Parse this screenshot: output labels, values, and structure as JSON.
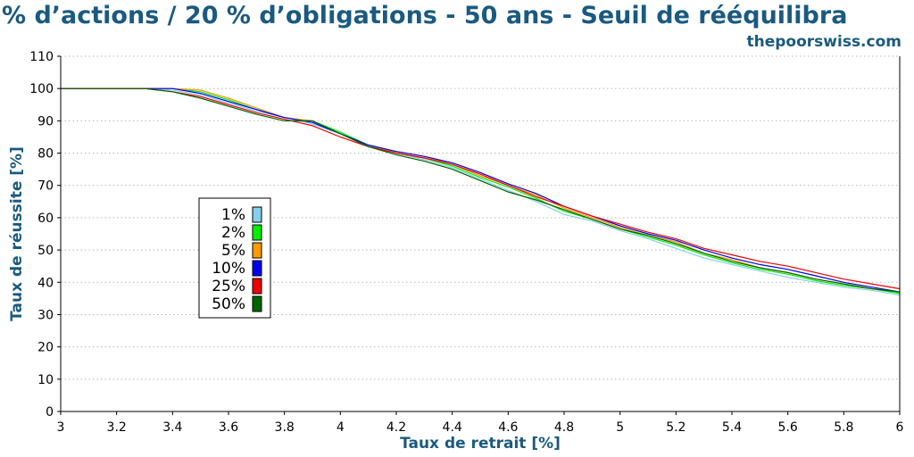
{
  "chart_data": {
    "type": "line",
    "title": "% d’actions / 20 % d’obligations - 50 ans - Seuil de rééquilibra",
    "source": "thepoorswiss.com",
    "xlabel": "Taux de retrait [%]",
    "ylabel": "Taux de réussite [%]",
    "xlim": [
      3,
      6
    ],
    "ylim": [
      0,
      110
    ],
    "x_ticks": [
      "3",
      "3.2",
      "3.4",
      "3.6",
      "3.8",
      "4",
      "4.2",
      "4.4",
      "4.6",
      "4.8",
      "5",
      "5.2",
      "5.4",
      "5.6",
      "5.8",
      "6"
    ],
    "y_ticks": [
      "0",
      "10",
      "20",
      "30",
      "40",
      "50",
      "60",
      "70",
      "80",
      "90",
      "100",
      "110"
    ],
    "grid": "horizontal-dotted",
    "legend_placement": "center-left",
    "x": [
      3.0,
      3.1,
      3.2,
      3.3,
      3.4,
      3.5,
      3.6,
      3.7,
      3.8,
      3.9,
      4.0,
      4.1,
      4.2,
      4.3,
      4.4,
      4.5,
      4.6,
      4.7,
      4.8,
      4.9,
      5.0,
      5.1,
      5.2,
      5.3,
      5.4,
      5.5,
      5.6,
      5.7,
      5.8,
      5.9,
      6.0
    ],
    "series": [
      {
        "name": "1%",
        "color": "#87ceeb",
        "values": [
          100,
          100,
          100,
          100,
          99.5,
          98,
          95.5,
          93,
          91,
          89,
          86,
          82.5,
          80,
          78,
          75.5,
          72,
          68.5,
          65,
          61,
          59,
          56,
          53.5,
          50.5,
          47.5,
          45.5,
          43.5,
          41.5,
          40,
          38.5,
          37.5,
          36
        ]
      },
      {
        "name": "2%",
        "color": "#00ee00",
        "values": [
          100,
          100,
          100,
          100,
          100,
          99,
          96.5,
          93.5,
          91,
          90,
          86.5,
          82.5,
          80,
          78.5,
          76,
          72.5,
          69.5,
          66,
          62,
          59.5,
          56.5,
          54,
          51.5,
          48.5,
          46,
          44,
          42.5,
          40.5,
          39,
          38,
          36.5
        ]
      },
      {
        "name": "5%",
        "color": "#ff9900",
        "values": [
          100,
          100,
          100,
          100,
          100,
          99.5,
          97,
          94,
          91,
          90,
          86,
          82,
          80.5,
          79,
          76.5,
          73,
          70,
          67,
          63,
          60,
          57,
          54.5,
          52.5,
          49,
          47,
          44.5,
          43,
          41,
          39.5,
          38,
          37
        ]
      },
      {
        "name": "10%",
        "color": "#0000ee",
        "values": [
          100,
          100,
          100,
          100,
          100,
          98.5,
          96,
          93.5,
          91,
          89.5,
          86,
          82.5,
          80.5,
          79,
          77,
          74,
          70.5,
          67.5,
          63.5,
          60.5,
          57.5,
          55,
          53,
          50,
          47.5,
          45.5,
          44,
          42,
          40,
          38.5,
          37
        ]
      },
      {
        "name": "25%",
        "color": "#ee0000",
        "values": [
          100,
          100,
          100,
          100,
          99,
          97.5,
          95,
          92.5,
          90.5,
          88.5,
          85,
          82,
          80,
          78.5,
          76.5,
          73.5,
          70,
          66.5,
          63.5,
          60.5,
          58,
          55.5,
          53.5,
          50.5,
          48.5,
          46.5,
          45,
          43,
          41,
          39.5,
          38
        ]
      },
      {
        "name": "50%",
        "color": "#006400",
        "values": [
          100,
          100,
          100,
          100,
          99,
          97,
          94.5,
          92,
          90,
          90,
          86,
          82,
          79.5,
          77.5,
          75,
          71.5,
          68,
          65.5,
          62.5,
          59.5,
          56.5,
          54.5,
          52,
          49,
          46.5,
          44.5,
          43,
          41,
          39.5,
          38,
          37
        ]
      }
    ]
  }
}
